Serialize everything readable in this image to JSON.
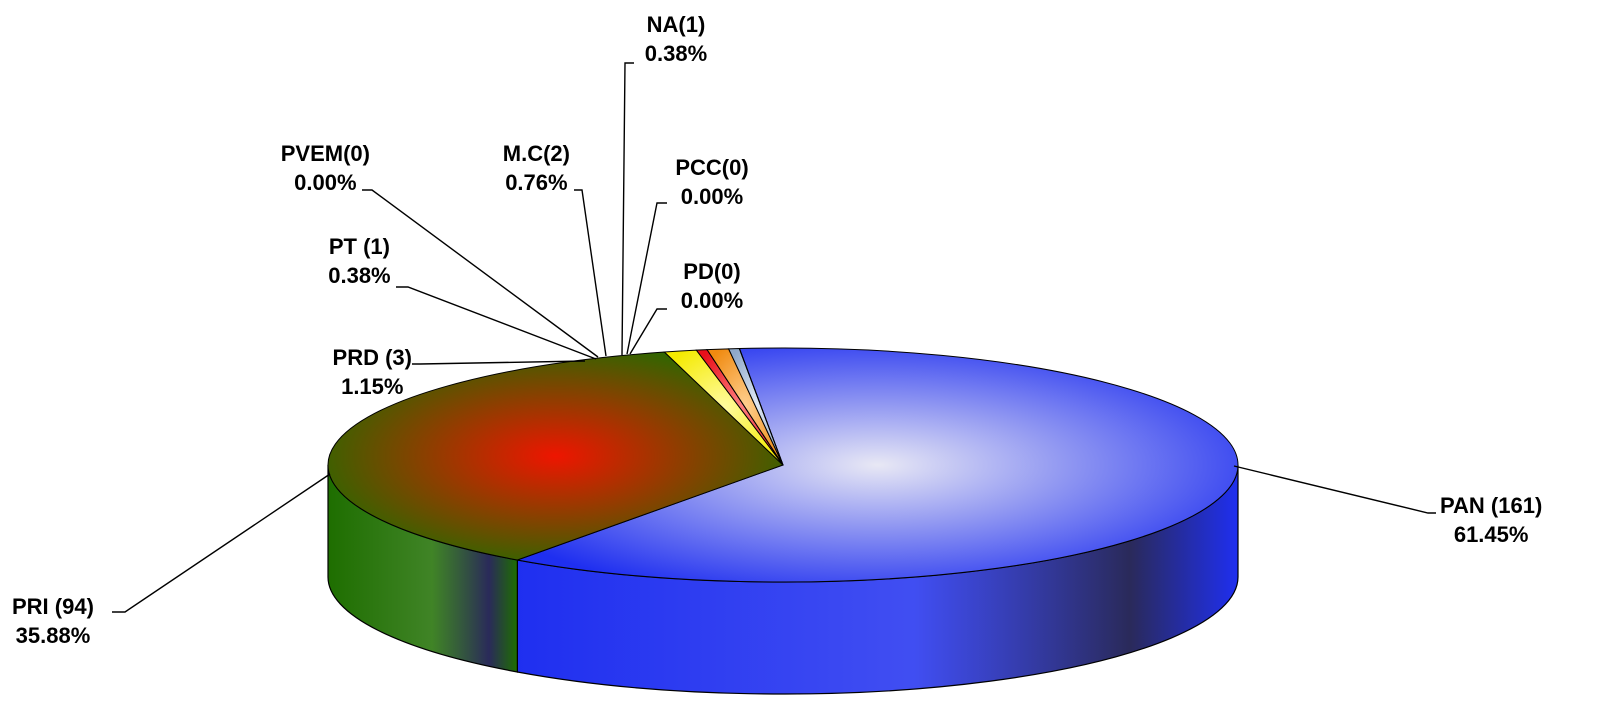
{
  "chart_data": {
    "type": "pie",
    "three_d": true,
    "slices": [
      {
        "name": "PAN",
        "label": "PAN (161)",
        "count": 161,
        "percent_label": "61.45%",
        "value": 61.45,
        "color": "#1f2ff0",
        "highlight": "#e8e8f4"
      },
      {
        "name": "PRI",
        "label": "PRI (94)",
        "count": 94,
        "percent_label": "35.88%",
        "value": 35.88,
        "color": "#1e6e00",
        "highlight": "#ee1500"
      },
      {
        "name": "PRD",
        "label": "PRD (3)",
        "count": 3,
        "percent_label": "1.15%",
        "value": 1.15,
        "color": "#f4ea00",
        "highlight": "#fffba0"
      },
      {
        "name": "PT",
        "label": "PT (1)",
        "count": 1,
        "percent_label": "0.38%",
        "value": 0.38,
        "color": "#e8101a",
        "highlight": "#ff8080"
      },
      {
        "name": "PVEM",
        "label": "PVEM(0)",
        "count": 0,
        "percent_label": "0.00%",
        "value": 0.0,
        "color": "#1a9a30",
        "highlight": "#80e080"
      },
      {
        "name": "M.C",
        "label": "M.C(2)",
        "count": 2,
        "percent_label": "0.76%",
        "value": 0.76,
        "color": "#f08a10",
        "highlight": "#ffd090"
      },
      {
        "name": "NA",
        "label": "NA(1)",
        "count": 1,
        "percent_label": "0.38%",
        "value": 0.38,
        "color": "#8fa8c8",
        "highlight": "#e0e8f4"
      },
      {
        "name": "PCC",
        "label": "PCC(0)",
        "count": 0,
        "percent_label": "0.00%",
        "value": 0.0,
        "color": "#7a3a8a",
        "highlight": "#c8a0d8"
      },
      {
        "name": "PD",
        "label": "PD(0)",
        "count": 0,
        "percent_label": "0.00%",
        "value": 0.0,
        "color": "#404040",
        "highlight": "#a0a0a0"
      }
    ],
    "legend": "none",
    "labels": "outside-with-leader-lines"
  }
}
